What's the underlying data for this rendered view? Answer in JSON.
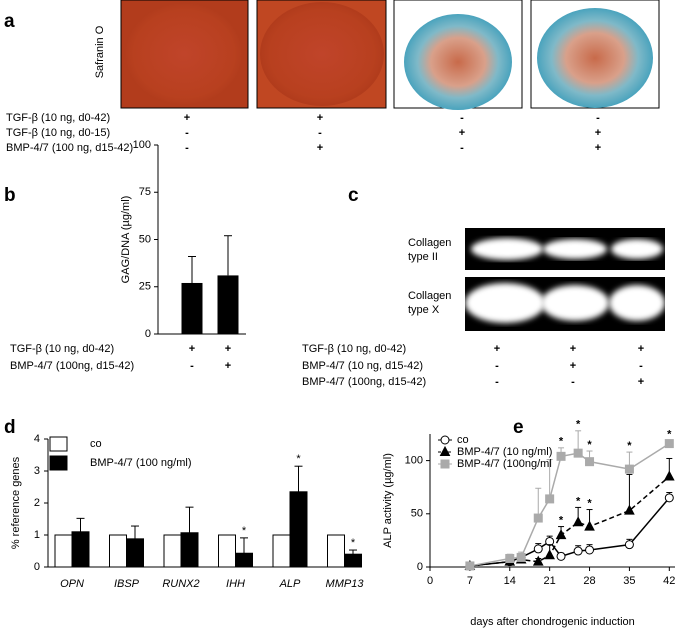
{
  "panel_a": {
    "label": "a",
    "stain": "Safranin O",
    "rows": [
      {
        "name": "TGF-β (10 ng, d0-42)",
        "marks": [
          "+",
          "+",
          "-",
          "-"
        ]
      },
      {
        "name": "TGF-β (10 ng, d0-15)",
        "marks": [
          "-",
          "-",
          "+",
          "+"
        ]
      },
      {
        "name": "BMP-4/7 (100 ng, d15-42)",
        "marks": [
          "-",
          "+",
          "-",
          "+"
        ]
      }
    ]
  },
  "panel_c": {
    "label": "c",
    "blots": [
      {
        "lines": [
          "Collagen",
          "type II"
        ]
      },
      {
        "lines": [
          "Collagen",
          "type X"
        ]
      }
    ],
    "rows": [
      {
        "name": "TGF-β (10 ng, d0-42)",
        "marks": [
          "+",
          "+",
          "+"
        ]
      },
      {
        "name": "BMP-4/7 (10 ng, d15-42)",
        "marks": [
          "-",
          "+",
          "-"
        ]
      },
      {
        "name": "BMP-4/7 (100ng, d15-42)",
        "marks": [
          "-",
          "-",
          "+"
        ]
      }
    ]
  },
  "chart_data": [
    {
      "type": "bar",
      "panel_label": "b",
      "y_label": "GAG/DNA (µg/ml)",
      "categories": [
        null,
        null
      ],
      "values": [
        27,
        31
      ],
      "errors": [
        14,
        21
      ],
      "color": "#000000",
      "ylim": [
        0,
        100
      ],
      "yticks": [
        0,
        25,
        50,
        75,
        100
      ],
      "conditions": [
        {
          "name": "TGF-β (10 ng, d0-42)",
          "marks": [
            "+",
            "+"
          ]
        },
        {
          "name": "BMP-4/7 (100ng, d15-42)",
          "marks": [
            "-",
            "+"
          ]
        }
      ]
    },
    {
      "type": "grouped-bar",
      "panel_label": "d",
      "y_label": "% reference genes",
      "categories": [
        "OPN",
        "IBSP",
        "RUNX2",
        "IHH",
        "ALP",
        "MMP13"
      ],
      "series": [
        {
          "name": "co",
          "color": "#ffffff",
          "values": [
            1,
            1,
            1,
            1,
            1,
            1
          ]
        },
        {
          "name": "BMP-4/7 (100 ng/ml)",
          "color": "#000000",
          "values": [
            1.1,
            0.88,
            1.07,
            0.43,
            2.35,
            0.4
          ],
          "errors": [
            0.42,
            0.4,
            0.8,
            0.48,
            0.8,
            0.13
          ],
          "significance": [
            null,
            null,
            null,
            "*",
            "*",
            "*"
          ]
        }
      ],
      "ylim": [
        0,
        4
      ],
      "yticks": [
        0,
        1,
        2,
        3,
        4
      ]
    },
    {
      "type": "line",
      "panel_label": "e",
      "x_label": "days after chondrogenic induction",
      "y_label": "ALP activity (µg/ml)",
      "x": [
        7,
        14,
        16,
        19,
        21,
        23,
        26,
        28,
        35,
        42
      ],
      "series": [
        {
          "name": "co",
          "color": "#000000",
          "marker": "circle",
          "line_style": "solid",
          "values": [
            1,
            5,
            9,
            17,
            24,
            10,
            15,
            16,
            21,
            65
          ],
          "errors": [
            1,
            3,
            3,
            5,
            5,
            3,
            5,
            5,
            5,
            5
          ],
          "significance": [
            null,
            null,
            null,
            null,
            null,
            null,
            null,
            null,
            null,
            null
          ]
        },
        {
          "name": "BMP-4/7 (10 ng/ml)",
          "color": "#000000",
          "marker": "triangle",
          "line_style": "dashed",
          "values": [
            1,
            5,
            7,
            5,
            11,
            30,
            42,
            38,
            53,
            85
          ],
          "errors": [
            1,
            3,
            4,
            3,
            10,
            8,
            14,
            16,
            34,
            17
          ],
          "significance": [
            null,
            null,
            null,
            null,
            null,
            "*",
            "*",
            "*",
            null,
            null
          ]
        },
        {
          "name": "BMP-4/7 (100ng/ml",
          "color": "#aaaaaa",
          "marker": "square",
          "line_style": "solid",
          "values": [
            1,
            8,
            9,
            46,
            64,
            104,
            107,
            99,
            92,
            116
          ],
          "errors": [
            1,
            4,
            5,
            28,
            37,
            8,
            21,
            10,
            16,
            3
          ],
          "significance": [
            null,
            null,
            null,
            null,
            null,
            "*",
            "*",
            "*",
            "*",
            "*"
          ]
        }
      ],
      "xlim": [
        0,
        43
      ],
      "ylim": [
        0,
        125
      ],
      "xticks": [
        0,
        7,
        14,
        21,
        28,
        35,
        42
      ],
      "yticks": [
        0,
        50,
        100
      ]
    }
  ]
}
